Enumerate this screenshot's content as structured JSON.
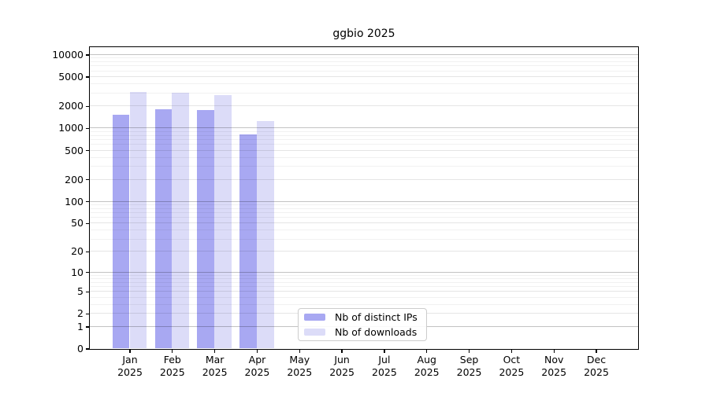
{
  "chart_data": {
    "type": "bar",
    "title": "ggbio 2025",
    "categories": [
      "Jan",
      "Feb",
      "Mar",
      "Apr",
      "May",
      "Jun",
      "Jul",
      "Aug",
      "Sep",
      "Oct",
      "Nov",
      "Dec"
    ],
    "category_year": "2025",
    "series": [
      {
        "name": "Nb of distinct IPs",
        "color": "#a8a8f2",
        "values": [
          1510,
          1820,
          1780,
          820,
          null,
          null,
          null,
          null,
          null,
          null,
          null,
          null
        ]
      },
      {
        "name": "Nb of downloads",
        "color": "#dcdcf8",
        "values": [
          3070,
          3000,
          2840,
          1250,
          null,
          null,
          null,
          null,
          null,
          null,
          null,
          null
        ]
      }
    ],
    "yscale": "log1p",
    "ylim": [
      0,
      12700
    ],
    "yticks": [
      0,
      1,
      2,
      5,
      10,
      20,
      50,
      100,
      200,
      500,
      1000,
      2000,
      5000,
      10000
    ],
    "grid": true,
    "legend_position": "inside-bottom-center",
    "axis_color": "#000000",
    "background_color": "#ffffff"
  }
}
